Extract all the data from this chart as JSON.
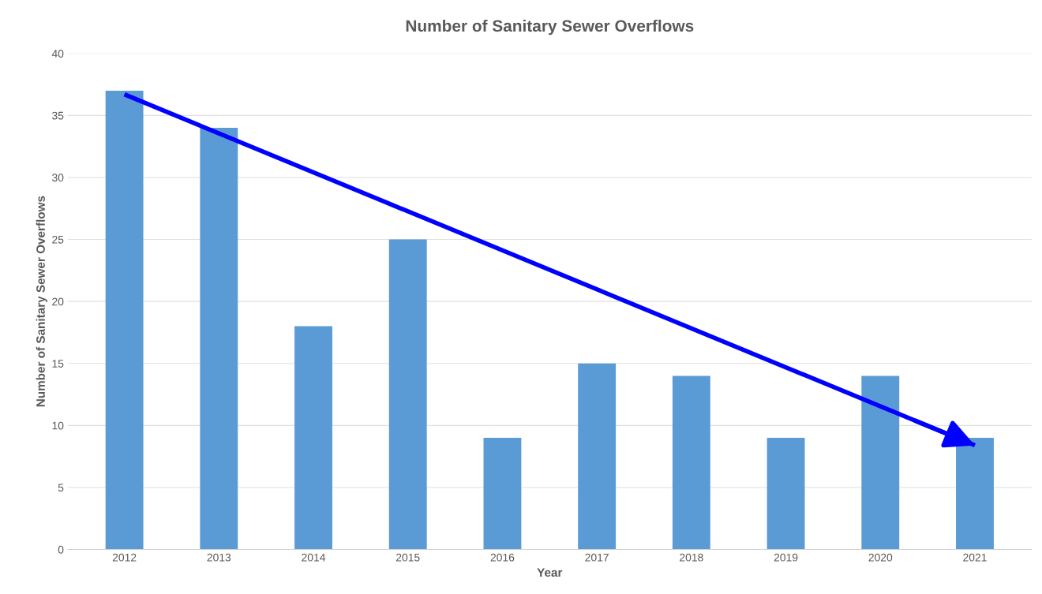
{
  "chart_data": {
    "type": "bar",
    "title": "Number of Sanitary Sewer Overflows",
    "xlabel": "Year",
    "ylabel": "Number of Sanitary Sewer Overflows",
    "categories": [
      "2012",
      "2013",
      "2014",
      "2015",
      "2016",
      "2017",
      "2018",
      "2019",
      "2020",
      "2021"
    ],
    "series": [
      {
        "color": "#5b9bd5",
        "values": [
          37,
          34,
          18,
          25,
          9,
          15,
          14,
          9,
          14,
          9
        ]
      },
      {
        "type": "line",
        "color": "#0000ff",
        "values": [
          36.7,
          null,
          null,
          null,
          null,
          null,
          null,
          null,
          null,
          8.4
        ]
      }
    ],
    "ylim": [
      0,
      40
    ],
    "yticks": [
      0,
      5,
      10,
      15,
      20,
      25,
      30,
      35,
      40
    ],
    "grid": "y",
    "legend": false
  }
}
